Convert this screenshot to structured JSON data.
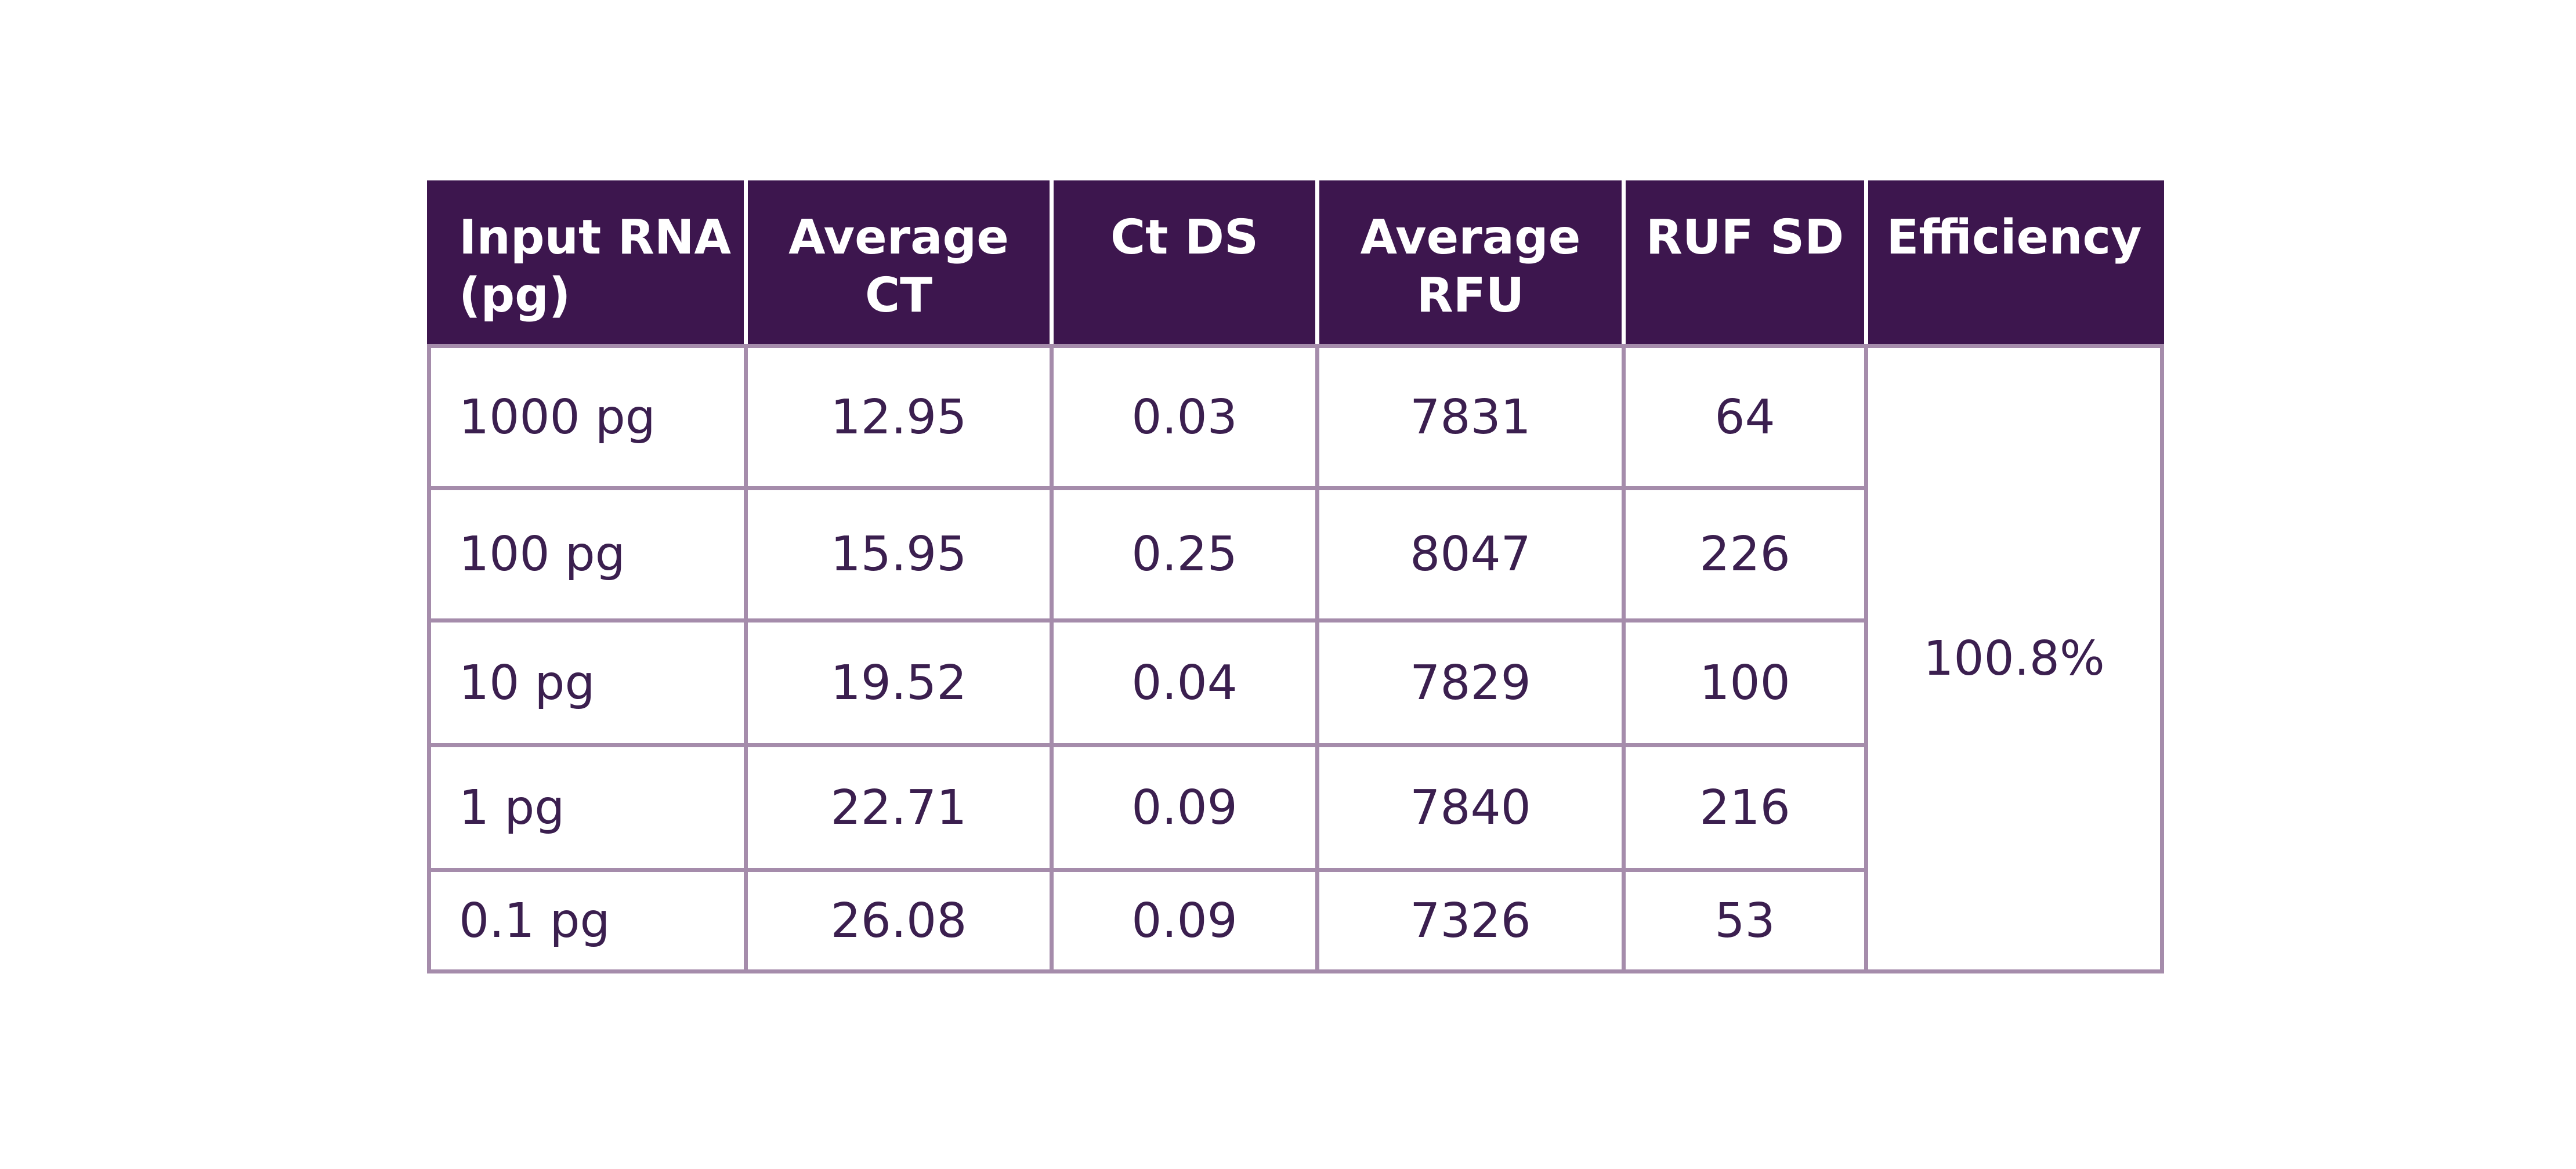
{
  "table": {
    "headers": [
      {
        "line1": "Input RNA",
        "line2": "(pg)"
      },
      {
        "line1": "Average",
        "line2": "CT"
      },
      {
        "line1": "Ct DS",
        "line2": ""
      },
      {
        "line1": "Average",
        "line2": "RFU"
      },
      {
        "line1": "RUF SD",
        "line2": ""
      },
      {
        "line1": "Efficiency",
        "line2": ""
      }
    ],
    "rows": [
      {
        "input": "1000 pg",
        "avg_ct": "12.95",
        "ct_ds": "0.03",
        "avg_rfu": "7831",
        "rfu_sd": "64"
      },
      {
        "input": "100 pg",
        "avg_ct": "15.95",
        "ct_ds": "0.25",
        "avg_rfu": "8047",
        "rfu_sd": "226"
      },
      {
        "input": "10 pg",
        "avg_ct": "19.52",
        "ct_ds": "0.04",
        "avg_rfu": "7829",
        "rfu_sd": "100"
      },
      {
        "input": "1 pg",
        "avg_ct": "22.71",
        "ct_ds": "0.09",
        "avg_rfu": "7840",
        "rfu_sd": "216"
      },
      {
        "input": "0.1 pg",
        "avg_ct": "26.08",
        "ct_ds": "0.09",
        "avg_rfu": "7326",
        "rfu_sd": "53"
      }
    ],
    "efficiency": "100.8%"
  },
  "colors": {
    "header_bg": "#3d164e",
    "header_text": "#ffffff",
    "border": "#a58cab",
    "body_text": "#3b1f4f"
  }
}
